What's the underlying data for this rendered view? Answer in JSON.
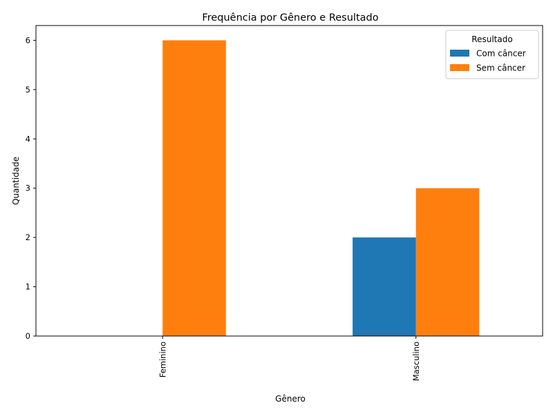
{
  "chart_data": {
    "type": "bar",
    "title": "Frequência por Gênero e Resultado",
    "xlabel": "Gênero",
    "ylabel": "Quantidade",
    "categories": [
      "Feminino",
      "Masculino"
    ],
    "series": [
      {
        "name": "Com câncer",
        "values": [
          0,
          2
        ],
        "color": "#1f77b4"
      },
      {
        "name": "Sem câncer",
        "values": [
          6,
          3
        ],
        "color": "#ff7f0e"
      }
    ],
    "ylim": [
      0,
      6.3
    ],
    "yticks": [
      0,
      1,
      2,
      3,
      4,
      5,
      6
    ],
    "grid": false,
    "legend": {
      "title": "Resultado",
      "position": "top-right"
    }
  }
}
